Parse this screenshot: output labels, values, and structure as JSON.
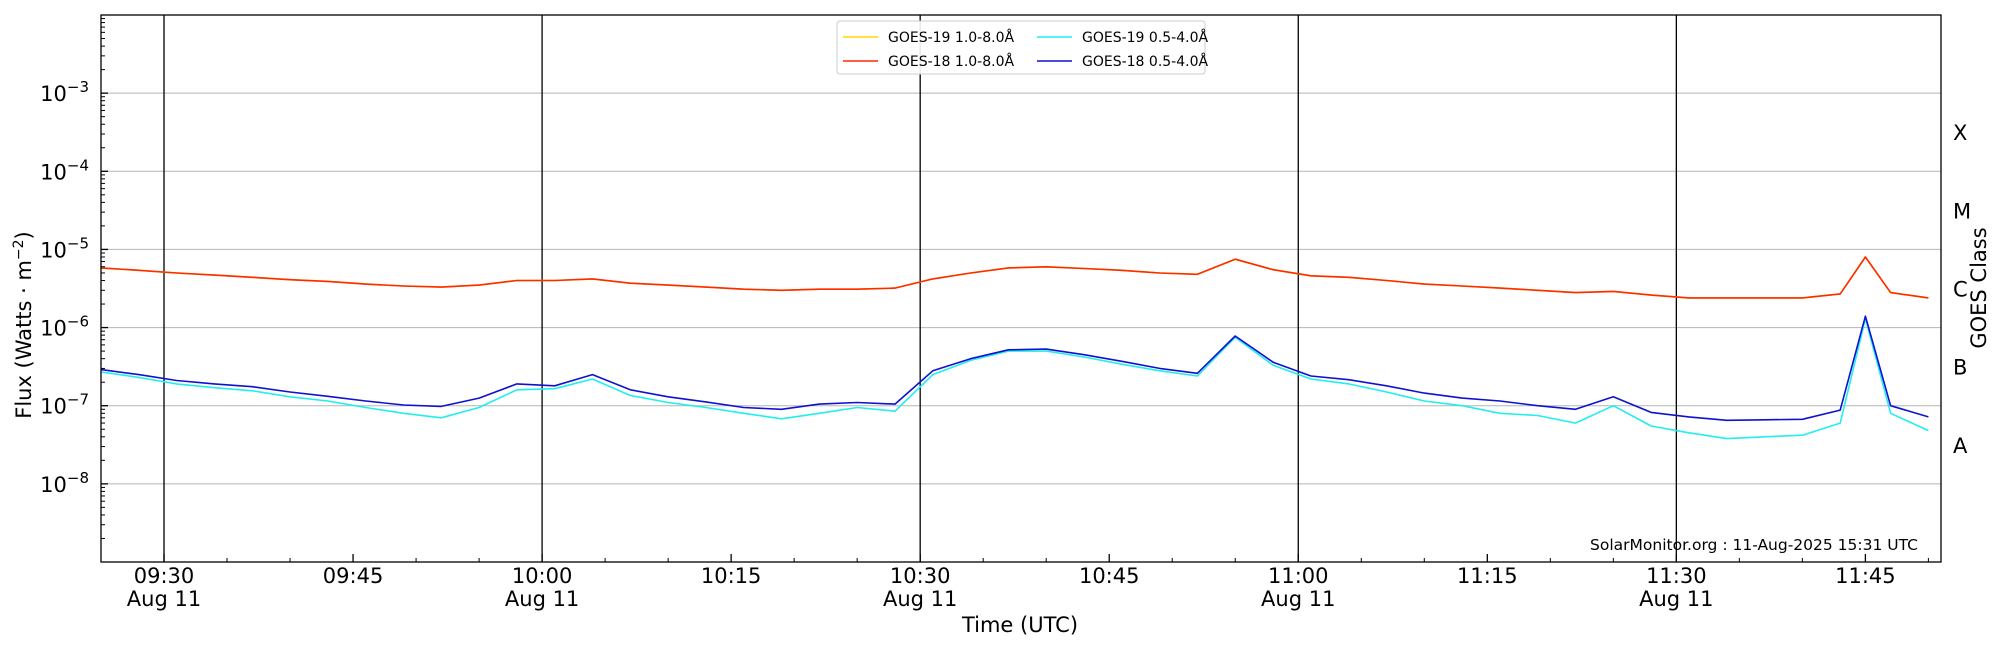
{
  "chart_data": {
    "type": "line",
    "xlabel": "Time (UTC)",
    "ylabel": "Flux (Watts · m",
    "ylabel_sup": "−2",
    "ylabel_close": ")",
    "right_label": "GOES Class",
    "credit": "SolarMonitor.org : 11-Aug-2025 15:31 UTC",
    "xlim": [
      "09:25",
      "11:51"
    ],
    "ylim": [
      1e-09,
      0.01
    ],
    "yscale": "log",
    "grid": "horizontal at each decade",
    "legend_position": "top-center",
    "x_ticks": [
      {
        "time": "09:30",
        "label": "09:30",
        "date": "Aug 11",
        "vline": true
      },
      {
        "time": "09:45",
        "label": "09:45",
        "date": "",
        "vline": false
      },
      {
        "time": "10:00",
        "label": "10:00",
        "date": "Aug 11",
        "vline": true
      },
      {
        "time": "10:15",
        "label": "10:15",
        "date": "",
        "vline": false
      },
      {
        "time": "10:30",
        "label": "10:30",
        "date": "Aug 11",
        "vline": true
      },
      {
        "time": "10:45",
        "label": "10:45",
        "date": "",
        "vline": false
      },
      {
        "time": "11:00",
        "label": "11:00",
        "date": "Aug 11",
        "vline": true
      },
      {
        "time": "11:15",
        "label": "11:15",
        "date": "",
        "vline": false
      },
      {
        "time": "11:30",
        "label": "11:30",
        "date": "Aug 11",
        "vline": true
      },
      {
        "time": "11:45",
        "label": "11:45",
        "date": "",
        "vline": false
      }
    ],
    "y_ticks": [
      {
        "value": 1e-08,
        "base": "10",
        "exp": "−8"
      },
      {
        "value": 1e-07,
        "base": "10",
        "exp": "−7"
      },
      {
        "value": 1e-06,
        "base": "10",
        "exp": "−6"
      },
      {
        "value": 1e-05,
        "base": "10",
        "exp": "−5"
      },
      {
        "value": 0.0001,
        "base": "10",
        "exp": "−4"
      },
      {
        "value": 0.001,
        "base": "10",
        "exp": "−3"
      }
    ],
    "class_labels": [
      {
        "label": "A",
        "value": 3.16e-08
      },
      {
        "label": "B",
        "value": 3.16e-07
      },
      {
        "label": "C",
        "value": 3.16e-06
      },
      {
        "label": "M",
        "value": 3.16e-05
      },
      {
        "label": "X",
        "value": 0.000316
      }
    ],
    "x": [
      "09:25",
      "09:28",
      "09:31",
      "09:34",
      "09:37",
      "09:40",
      "09:43",
      "09:46",
      "09:49",
      "09:52",
      "09:55",
      "09:58",
      "10:01",
      "10:04",
      "10:07",
      "10:10",
      "10:13",
      "10:16",
      "10:19",
      "10:22",
      "10:25",
      "10:28",
      "10:31",
      "10:34",
      "10:37",
      "10:40",
      "10:43",
      "10:46",
      "10:49",
      "10:52",
      "10:55",
      "10:58",
      "11:01",
      "11:04",
      "11:07",
      "11:10",
      "11:13",
      "11:16",
      "11:19",
      "11:22",
      "11:25",
      "11:28",
      "11:31",
      "11:34",
      "11:37",
      "11:40",
      "11:43",
      "11:45",
      "11:47",
      "11:50"
    ],
    "series": [
      {
        "name": "GOES-19 1.0-8.0Å",
        "color": "#ffd700",
        "values": [
          5.8e-06,
          5.4e-06,
          5e-06,
          4.7e-06,
          4.4e-06,
          4.1e-06,
          3.9e-06,
          3.6e-06,
          3.4e-06,
          3.3e-06,
          3.5e-06,
          4e-06,
          4e-06,
          4.2e-06,
          3.7e-06,
          3.5e-06,
          3.3e-06,
          3.1e-06,
          3e-06,
          3.1e-06,
          3.1e-06,
          3.2e-06,
          4.2e-06,
          5e-06,
          5.8e-06,
          6e-06,
          5.7e-06,
          5.4e-06,
          5e-06,
          4.8e-06,
          7.5e-06,
          5.5e-06,
          4.6e-06,
          4.4e-06,
          4e-06,
          3.6e-06,
          3.4e-06,
          3.2e-06,
          3e-06,
          2.8e-06,
          2.9e-06,
          2.6e-06,
          2.4e-06,
          2.4e-06,
          2.4e-06,
          2.4e-06,
          2.7e-06,
          8e-06,
          2.8e-06,
          2.4e-06
        ]
      },
      {
        "name": "GOES-18 1.0-8.0Å",
        "color": "#ff2a00",
        "values": [
          5.8e-06,
          5.4e-06,
          5e-06,
          4.7e-06,
          4.4e-06,
          4.1e-06,
          3.9e-06,
          3.6e-06,
          3.4e-06,
          3.3e-06,
          3.5e-06,
          4e-06,
          4e-06,
          4.2e-06,
          3.7e-06,
          3.5e-06,
          3.3e-06,
          3.1e-06,
          3e-06,
          3.1e-06,
          3.1e-06,
          3.2e-06,
          4.2e-06,
          5e-06,
          5.8e-06,
          6e-06,
          5.7e-06,
          5.4e-06,
          5e-06,
          4.8e-06,
          7.5e-06,
          5.5e-06,
          4.6e-06,
          4.4e-06,
          4e-06,
          3.6e-06,
          3.4e-06,
          3.2e-06,
          3e-06,
          2.8e-06,
          2.9e-06,
          2.6e-06,
          2.4e-06,
          2.4e-06,
          2.4e-06,
          2.4e-06,
          2.7e-06,
          8e-06,
          2.8e-06,
          2.4e-06
        ]
      },
      {
        "name": "GOES-19 0.5-4.0Å",
        "color": "#22eeee",
        "values": [
          2.7e-07,
          2.3e-07,
          1.9e-07,
          1.7e-07,
          1.55e-07,
          1.3e-07,
          1.15e-07,
          9.5e-08,
          8e-08,
          7e-08,
          9.5e-08,
          1.6e-07,
          1.65e-07,
          2.2e-07,
          1.35e-07,
          1.1e-07,
          9.5e-08,
          8e-08,
          6.8e-08,
          8e-08,
          9.5e-08,
          8.5e-08,
          2.5e-07,
          3.8e-07,
          5e-07,
          5e-07,
          4.2e-07,
          3.4e-07,
          2.8e-07,
          2.4e-07,
          7.5e-07,
          3.3e-07,
          2.2e-07,
          1.9e-07,
          1.5e-07,
          1.15e-07,
          1e-07,
          8e-08,
          7.5e-08,
          6e-08,
          1e-07,
          5.5e-08,
          4.5e-08,
          3.8e-08,
          4e-08,
          4.2e-08,
          6e-08,
          1.3e-06,
          8e-08,
          4.8e-08
        ]
      },
      {
        "name": "GOES-18 0.5-4.0Å",
        "color": "#1010d0",
        "values": [
          2.9e-07,
          2.5e-07,
          2.1e-07,
          1.9e-07,
          1.75e-07,
          1.5e-07,
          1.32e-07,
          1.15e-07,
          1.02e-07,
          9.8e-08,
          1.25e-07,
          1.9e-07,
          1.8e-07,
          2.5e-07,
          1.6e-07,
          1.3e-07,
          1.12e-07,
          9.5e-08,
          9e-08,
          1.05e-07,
          1.1e-07,
          1.05e-07,
          2.8e-07,
          4e-07,
          5.2e-07,
          5.3e-07,
          4.5e-07,
          3.7e-07,
          3e-07,
          2.6e-07,
          7.8e-07,
          3.6e-07,
          2.4e-07,
          2.15e-07,
          1.8e-07,
          1.45e-07,
          1.25e-07,
          1.15e-07,
          1e-07,
          9e-08,
          1.3e-07,
          8.2e-08,
          7.2e-08,
          6.5e-08,
          6.6e-08,
          6.7e-08,
          8.8e-08,
          1.4e-06,
          1e-07,
          7.2e-08
        ]
      }
    ]
  }
}
